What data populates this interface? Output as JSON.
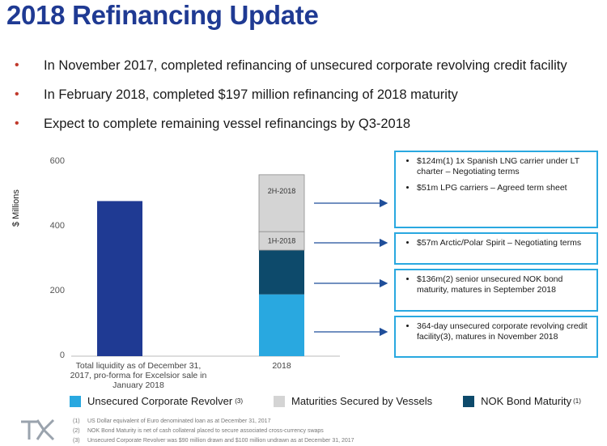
{
  "title": "2018 Refinancing Update",
  "bullets": [
    "In November 2017, completed refinancing of unsecured corporate revolving credit facility",
    "In February 2018, completed $197 million refinancing of 2018 maturity",
    "Expect to complete remaining vessel refinancings by Q3-2018"
  ],
  "colors": {
    "title": "#1f3a93",
    "bullet": "#c0392b",
    "liquidity": "#1f3a93",
    "revolver": "#29a8e0",
    "nok": "#0d4a6b",
    "vessels": "#d4d4d4",
    "callout_border": "#29a8e0"
  },
  "chart_data": {
    "type": "bar",
    "ylabel": "$ Millions",
    "ylim": [
      0,
      600
    ],
    "yticks": [
      "0",
      "200",
      "400",
      "600"
    ],
    "categories": [
      "Total liquidity as of December 31, 2017, pro-forma for Excelsior sale in January 2018",
      "2018"
    ],
    "bars": [
      {
        "category": "Total liquidity as of December 31, 2017, pro-forma for Excelsior sale in January 2018",
        "segments": [
          {
            "series": "Total liquidity",
            "value": 477
          }
        ]
      },
      {
        "category": "2018",
        "segments": [
          {
            "series": "Unsecured Corporate Revolver",
            "value": 190
          },
          {
            "series": "NOK Bond Maturity",
            "value": 136
          },
          {
            "series": "Maturities Secured by Vessels",
            "label": "1H-2018",
            "value": 57
          },
          {
            "series": "Maturities Secured by Vessels",
            "label": "2H-2018",
            "value": 175
          }
        ]
      }
    ],
    "legend": [
      {
        "name": "Unsecured Corporate Revolver",
        "sup": "(3)",
        "color": "#29a8e0"
      },
      {
        "name": "Maturities Secured by Vessels",
        "sup": "",
        "color": "#d4d4d4"
      },
      {
        "name": "NOK Bond Maturity",
        "sup": "(1)",
        "color": "#0d4a6b"
      }
    ],
    "legend_position": "bottom"
  },
  "callouts": [
    {
      "items": [
        "$124m(1) 1x Spanish LNG carrier under LT charter – Negotiating terms",
        "$51m LPG carriers – Agreed term sheet"
      ]
    },
    {
      "items": [
        "$57m Arctic/Polar Spirit – Negotiating terms"
      ]
    },
    {
      "items": [
        "$136m(2) senior unsecured NOK bond maturity, matures in September 2018"
      ]
    },
    {
      "items": [
        "364-day unsecured corporate revolving credit facility(3), matures in November 2018"
      ]
    }
  ],
  "footnotes": [
    {
      "n": "(1)",
      "text": "US Dollar equivalent of Euro denominated loan as at December 31, 2017"
    },
    {
      "n": "(2)",
      "text": "NOK Bond Maturity is net of cash collateral placed to secure associated cross-currency swaps"
    },
    {
      "n": "(3)",
      "text": "Unsecured Corporate Revolver was $90 million drawn and $100 million undrawn as at December 31, 2017"
    }
  ],
  "logo_text": "TK"
}
